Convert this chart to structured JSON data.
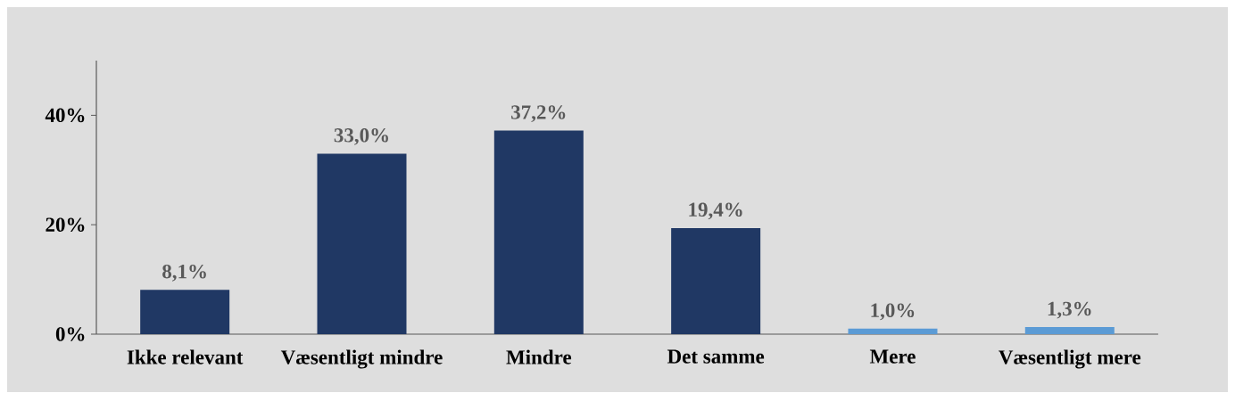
{
  "chart_data": {
    "type": "bar",
    "categories": [
      "Ikke relevant",
      "Væsentligt mindre",
      "Mindre",
      "Det samme",
      "Mere",
      "Væsentligt mere"
    ],
    "values": [
      8.1,
      33.0,
      37.2,
      19.4,
      1.0,
      1.3
    ],
    "colors": [
      "#203864",
      "#203864",
      "#203864",
      "#203864",
      "#5b9bd5",
      "#5b9bd5"
    ],
    "value_labels": [
      "8,1%",
      "33,0%",
      "37,2%",
      "19,4%",
      "1,0%",
      "1,3%"
    ],
    "ylim": [
      0,
      50
    ],
    "yticks": [
      {
        "value": 0,
        "label": "0%"
      },
      {
        "value": 20,
        "label": "20%"
      },
      {
        "value": 40,
        "label": "40%"
      }
    ],
    "grid": false
  }
}
